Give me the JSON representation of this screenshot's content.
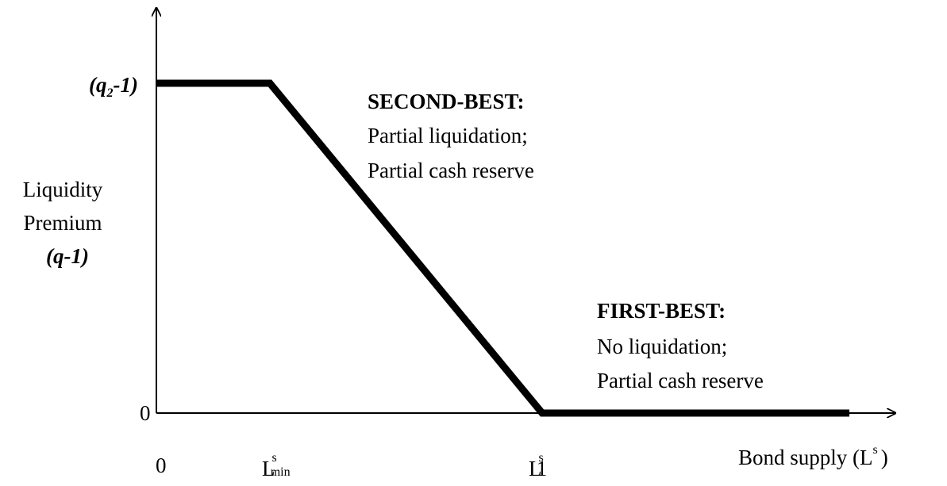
{
  "y_axis": {
    "top_label": {
      "open": "(q",
      "sub": "2",
      "close": "-1)"
    },
    "title_lines": [
      "Liquidity",
      "Premium",
      "(q-1)"
    ],
    "zero": "0"
  },
  "x_axis": {
    "zero": "0",
    "l_min": {
      "base": "L",
      "sup": "s",
      "sub": "min"
    },
    "l_1": {
      "base": "L",
      "sup": "s",
      "sub": "1"
    },
    "title": {
      "text": "Bond supply (L",
      "sup": "s",
      "close": ")"
    }
  },
  "regions": [
    {
      "heading": "SECOND-BEST:",
      "lines": [
        "Partial liquidation;",
        "Partial cash reserve"
      ]
    },
    {
      "heading": "FIRST-BEST:",
      "lines": [
        "No liquidation;",
        "Partial cash reserve"
      ]
    }
  ]
}
